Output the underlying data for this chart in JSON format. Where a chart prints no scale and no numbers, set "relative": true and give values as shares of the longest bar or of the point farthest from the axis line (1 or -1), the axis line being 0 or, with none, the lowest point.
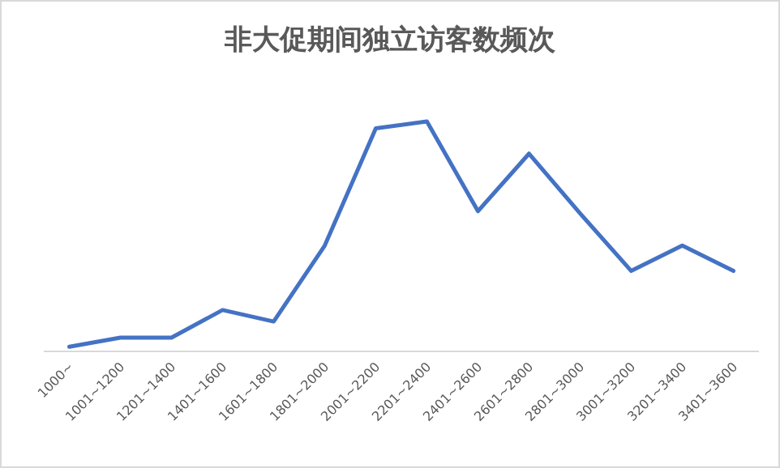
{
  "chart_data": {
    "type": "line",
    "title": "非大促期间独立访客数频次",
    "relative": true,
    "categories": [
      "1000~",
      "1001~1200",
      "1201~1400",
      "1401~1600",
      "1601~1800",
      "1801~2000",
      "2001~2200",
      "2201~2400",
      "2401~2600",
      "2601~2800",
      "2801~3000",
      "3001~3200",
      "3201~3400",
      "3401~3600"
    ],
    "series": [
      {
        "color": "#4472c4",
        "values": [
          0.02,
          0.06,
          0.06,
          0.18,
          0.13,
          0.46,
          0.97,
          1.0,
          0.61,
          0.86,
          0.6,
          0.35,
          0.46,
          0.35
        ]
      }
    ],
    "grid": false,
    "marker": "none",
    "line_style": "solid"
  }
}
